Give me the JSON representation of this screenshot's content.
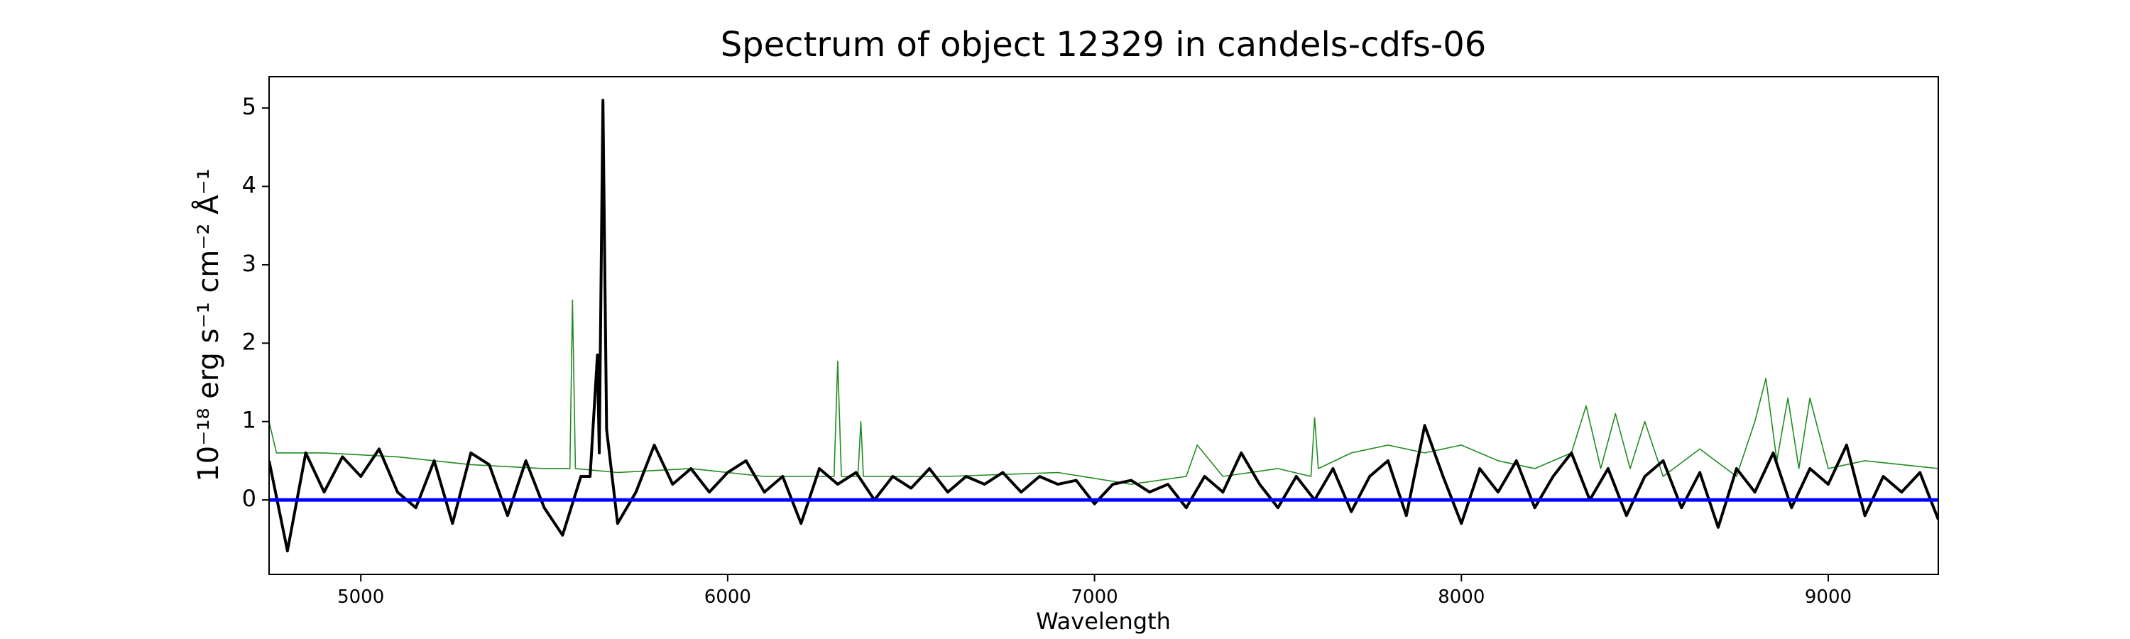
{
  "chart_data": {
    "type": "line",
    "title": "Spectrum of object 12329 in candels-cdfs-06",
    "x_label": "Wavelength",
    "y_label": "10⁻¹⁸ erg s⁻¹ cm⁻² Å⁻¹",
    "xlim": [
      4750,
      9300
    ],
    "ylim": [
      -0.95,
      5.4
    ],
    "xticks": [
      5000,
      6000,
      7000,
      8000,
      9000
    ],
    "yticks": [
      0,
      1,
      2,
      3,
      4,
      5
    ],
    "series": [
      {
        "color": "#228b22",
        "width": 1.6,
        "x": [
          4750,
          4770,
          4900,
          5100,
          5300,
          5500,
          5570,
          5577,
          5585,
          5700,
          5900,
          6100,
          6290,
          6300,
          6310,
          6355,
          6363,
          6370,
          6600,
          6900,
          7100,
          7250,
          7280,
          7350,
          7500,
          7590,
          7600,
          7610,
          7700,
          7800,
          7900,
          8000,
          8100,
          8200,
          8300,
          8340,
          8380,
          8420,
          8460,
          8500,
          8550,
          8650,
          8750,
          8800,
          8830,
          8860,
          8890,
          8920,
          8950,
          9000,
          9100,
          9300
        ],
        "values": [
          1.0,
          0.6,
          0.6,
          0.55,
          0.45,
          0.4,
          0.4,
          2.55,
          0.4,
          0.35,
          0.4,
          0.3,
          0.3,
          1.77,
          0.3,
          0.3,
          1.0,
          0.3,
          0.3,
          0.35,
          0.2,
          0.3,
          0.7,
          0.3,
          0.4,
          0.3,
          1.05,
          0.4,
          0.6,
          0.7,
          0.6,
          0.7,
          0.5,
          0.4,
          0.6,
          1.2,
          0.4,
          1.1,
          0.4,
          1.0,
          0.3,
          0.65,
          0.3,
          1.0,
          1.55,
          0.5,
          1.3,
          0.4,
          1.3,
          0.4,
          0.5,
          0.4
        ]
      },
      {
        "color": "#000000",
        "width": 4,
        "x": [
          4750,
          4800,
          4850,
          4900,
          4950,
          5000,
          5050,
          5100,
          5150,
          5200,
          5250,
          5300,
          5350,
          5400,
          5450,
          5500,
          5550,
          5600,
          5625,
          5645,
          5650,
          5660,
          5670,
          5700,
          5750,
          5800,
          5850,
          5900,
          5950,
          6000,
          6050,
          6100,
          6150,
          6200,
          6250,
          6300,
          6350,
          6400,
          6450,
          6500,
          6550,
          6600,
          6650,
          6700,
          6750,
          6800,
          6850,
          6900,
          6950,
          7000,
          7050,
          7100,
          7150,
          7200,
          7250,
          7300,
          7350,
          7400,
          7450,
          7500,
          7550,
          7600,
          7650,
          7700,
          7750,
          7800,
          7850,
          7900,
          7950,
          8000,
          8050,
          8100,
          8150,
          8200,
          8250,
          8300,
          8350,
          8400,
          8450,
          8500,
          8550,
          8600,
          8650,
          8700,
          8750,
          8800,
          8850,
          8900,
          8950,
          9000,
          9050,
          9100,
          9150,
          9200,
          9250,
          9300
        ],
        "values": [
          0.5,
          -0.65,
          0.6,
          0.1,
          0.55,
          0.3,
          0.65,
          0.1,
          -0.1,
          0.5,
          -0.3,
          0.6,
          0.45,
          -0.2,
          0.5,
          -0.1,
          -0.45,
          0.3,
          0.3,
          1.85,
          0.6,
          5.1,
          0.9,
          -0.3,
          0.1,
          0.7,
          0.2,
          0.4,
          0.1,
          0.35,
          0.5,
          0.1,
          0.3,
          -0.3,
          0.4,
          0.2,
          0.35,
          0.0,
          0.3,
          0.15,
          0.4,
          0.1,
          0.3,
          0.2,
          0.35,
          0.1,
          0.3,
          0.2,
          0.25,
          -0.05,
          0.2,
          0.25,
          0.1,
          0.2,
          -0.1,
          0.3,
          0.1,
          0.6,
          0.2,
          -0.1,
          0.3,
          0.0,
          0.4,
          -0.15,
          0.3,
          0.5,
          -0.2,
          0.95,
          0.3,
          -0.3,
          0.4,
          0.1,
          0.5,
          -0.1,
          0.3,
          0.6,
          0.0,
          0.4,
          -0.2,
          0.3,
          0.5,
          -0.1,
          0.35,
          -0.35,
          0.4,
          0.1,
          0.6,
          -0.1,
          0.4,
          0.2,
          0.7,
          -0.2,
          0.3,
          0.1,
          0.35,
          -0.25
        ]
      },
      {
        "color": "#0000ff",
        "width": 5,
        "x": [
          4750,
          9300
        ],
        "values": [
          0,
          0
        ]
      }
    ]
  }
}
